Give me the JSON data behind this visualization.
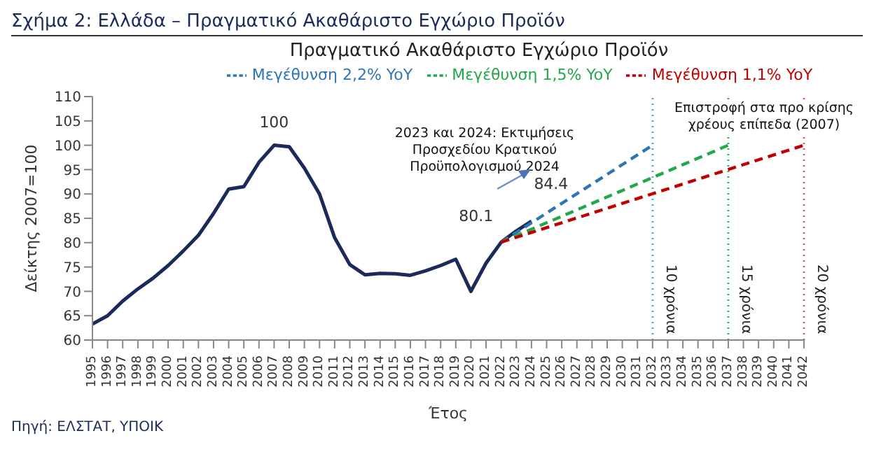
{
  "chart_data": {
    "type": "line",
    "title": "Σχήμα 2: Ελλάδα – Πραγματικό Ακαθάριστο Εγχώριο Προϊόν",
    "subtitle": "Πραγματικό Ακαθάριστο Εγχώριο Προϊόν",
    "xlabel": "Έτος",
    "ylabel": "Δείκτης 2007=100",
    "series": [
      {
        "color": "#1b2a5a",
        "line_style": "solid",
        "x": [
          1995,
          1996,
          1997,
          1998,
          1999,
          2000,
          2001,
          2002,
          2003,
          2004,
          2005,
          2006,
          2007,
          2008,
          2009,
          2010,
          2011,
          2012,
          2013,
          2014,
          2015,
          2016,
          2017,
          2018,
          2019,
          2020,
          2021,
          2022,
          2023,
          2024
        ],
        "values": [
          63.3,
          65,
          68,
          70.5,
          72.7,
          75.3,
          78.3,
          81.5,
          86,
          91,
          91.5,
          96.5,
          100,
          99.7,
          95.3,
          90,
          81,
          75.5,
          73.4,
          73.7,
          73.6,
          73.3,
          74.2,
          75.3,
          76.6,
          70,
          75.8,
          80.1,
          82.4,
          84.4
        ]
      },
      {
        "name": "Μεγέθυνση 2,2% YoY",
        "color": "#2e75b6",
        "line_style": "dashed",
        "x": [
          2022,
          2032
        ],
        "values": [
          80.1,
          100
        ]
      },
      {
        "name": "Μεγέθυνση 1,5% YoY",
        "color": "#21a84a",
        "line_style": "dashed",
        "x": [
          2022,
          2037
        ],
        "values": [
          80.1,
          100
        ]
      },
      {
        "name": "Μεγέθυνση 1,1% YoY",
        "color": "#c00000",
        "line_style": "dashed",
        "x": [
          2022,
          2042
        ],
        "values": [
          80.1,
          100
        ]
      }
    ],
    "xlim": [
      1995,
      2042
    ],
    "xticks": [
      1995,
      1996,
      1997,
      1998,
      1999,
      2000,
      2001,
      2002,
      2003,
      2004,
      2005,
      2006,
      2007,
      2008,
      2009,
      2010,
      2011,
      2012,
      2013,
      2014,
      2015,
      2016,
      2017,
      2018,
      2019,
      2020,
      2021,
      2022,
      2023,
      2024,
      2025,
      2026,
      2027,
      2028,
      2029,
      2030,
      2031,
      2032,
      2033,
      2034,
      2035,
      2036,
      2037,
      2038,
      2039,
      2040,
      2041,
      2042
    ],
    "ylim": [
      60,
      110
    ],
    "yticks": [
      60,
      65,
      70,
      75,
      80,
      85,
      90,
      95,
      100,
      105,
      110
    ],
    "legend": "top",
    "ref_lines": [
      {
        "axis": "x",
        "value": 2032,
        "label": "10 χρόνια",
        "color": "#5aa9c8",
        "line_style": "dotted"
      },
      {
        "axis": "x",
        "value": 2037,
        "label": "15 χρόνια",
        "color": "#2fb45a",
        "line_style": "dotted"
      },
      {
        "axis": "x",
        "value": 2042,
        "label": "20 χρόνια",
        "color": "#e06060",
        "line_style": "dotted"
      }
    ],
    "annotations": [
      {
        "text": "100",
        "x": 2007,
        "y": 100
      },
      {
        "text": "80.1",
        "x": 2022,
        "y": 80.1
      },
      {
        "text": "84.4",
        "x": 2024,
        "y": 84.4
      },
      "2023 και 2024: Εκτιμήσεις Προσχεδίου Κρατικού Προϋπολογισμού 2024",
      "Επιστροφή στα προ κρίσης χρέους επίπεδα (2007)",
      "Πηγή: ΕΛΣΤΑΤ, ΥΠΟΙΚ"
    ]
  }
}
